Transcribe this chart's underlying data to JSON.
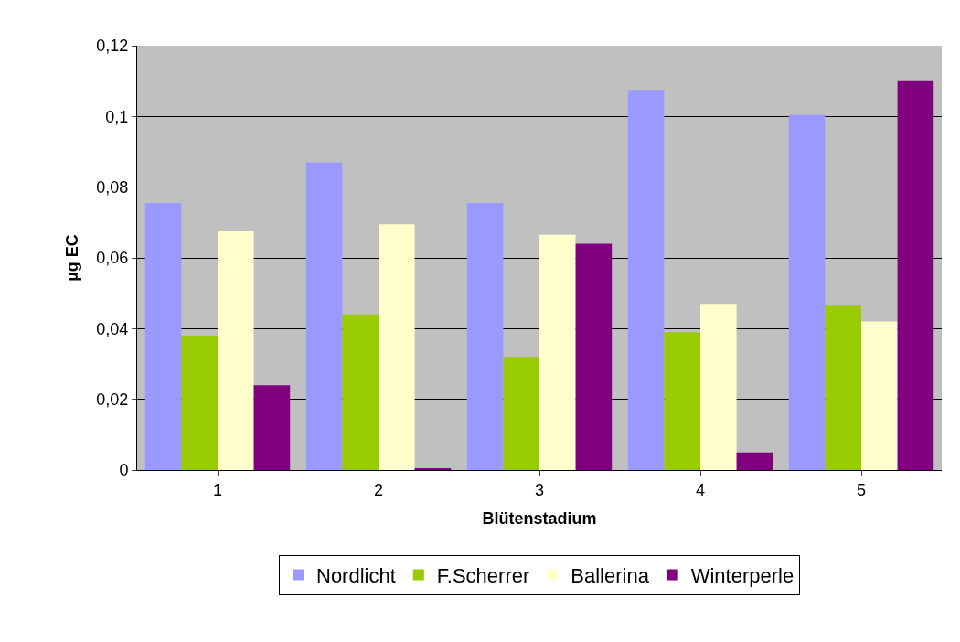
{
  "chart_data": {
    "type": "bar",
    "xlabel": "Blütenstadium",
    "ylabel": "µg EC",
    "categories": [
      "1",
      "2",
      "3",
      "4",
      "5"
    ],
    "series": [
      {
        "name": "Nordlicht",
        "color": "#9999ff",
        "values": [
          0.0755,
          0.087,
          0.0755,
          0.1075,
          0.1005
        ]
      },
      {
        "name": "F.Scherrer",
        "color": "#99cc00",
        "values": [
          0.038,
          0.044,
          0.032,
          0.039,
          0.0465
        ]
      },
      {
        "name": "Ballerina",
        "color": "#ffffcc",
        "values": [
          0.0675,
          0.0695,
          0.0665,
          0.047,
          0.042
        ]
      },
      {
        "name": "Winterperle",
        "color": "#800080",
        "values": [
          0.024,
          0.0005,
          0.064,
          0.005,
          0.11
        ]
      }
    ],
    "ylim": [
      0,
      0.12
    ],
    "yticks": [
      {
        "value": 0,
        "label": "0"
      },
      {
        "value": 0.02,
        "label": "0,02"
      },
      {
        "value": 0.04,
        "label": "0,04"
      },
      {
        "value": 0.06,
        "label": "0,06"
      },
      {
        "value": 0.08,
        "label": "0,08"
      },
      {
        "value": 0.1,
        "label": "0,1"
      },
      {
        "value": 0.12,
        "label": "0,12"
      }
    ],
    "grid": "y",
    "legend": "bottom"
  }
}
